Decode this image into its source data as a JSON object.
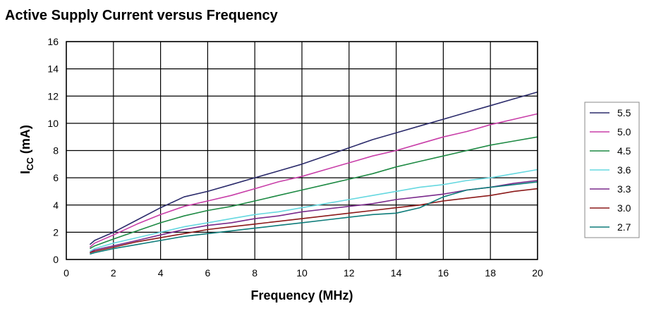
{
  "chart_data": {
    "type": "line",
    "title": "Active Supply Current versus Frequency",
    "xlabel": "Frequency (MHz)",
    "ylabel_main": "I",
    "ylabel_sub": "CC",
    "ylabel_unit": " (mA)",
    "xlim": [
      0,
      20
    ],
    "ylim": [
      0,
      16
    ],
    "x_ticks": [
      0,
      2,
      4,
      6,
      8,
      10,
      12,
      14,
      16,
      18,
      20
    ],
    "y_ticks": [
      0,
      2,
      4,
      6,
      8,
      10,
      12,
      14,
      16
    ],
    "grid": true,
    "legend_position": "right",
    "series": [
      {
        "name": "5.5",
        "color": "#2b2b6b",
        "x": [
          1,
          1.2,
          2,
          3,
          4,
          5,
          6,
          7,
          8,
          9,
          10,
          11,
          12,
          13,
          14,
          15,
          16,
          17,
          18,
          19,
          20
        ],
        "y": [
          1.1,
          1.4,
          2.0,
          2.9,
          3.8,
          4.6,
          5.0,
          5.5,
          6.0,
          6.5,
          7.0,
          7.6,
          8.2,
          8.8,
          9.3,
          9.8,
          10.3,
          10.8,
          11.3,
          11.8,
          12.3
        ]
      },
      {
        "name": "5.0",
        "color": "#c83ea8",
        "x": [
          1,
          1.2,
          2,
          3,
          4,
          5,
          6,
          7,
          8,
          9,
          10,
          11,
          12,
          13,
          14,
          15,
          16,
          17,
          18,
          19,
          20
        ],
        "y": [
          0.9,
          1.2,
          1.8,
          2.6,
          3.3,
          3.9,
          4.3,
          4.7,
          5.2,
          5.7,
          6.1,
          6.6,
          7.1,
          7.6,
          8.0,
          8.5,
          9.0,
          9.4,
          9.9,
          10.3,
          10.7
        ]
      },
      {
        "name": "4.5",
        "color": "#1e8a44",
        "x": [
          1,
          1.2,
          2,
          3,
          4,
          5,
          6,
          7,
          8,
          9,
          10,
          11,
          12,
          13,
          14,
          15,
          16,
          17,
          18,
          19,
          20
        ],
        "y": [
          0.8,
          1.0,
          1.5,
          2.1,
          2.7,
          3.2,
          3.6,
          3.9,
          4.3,
          4.7,
          5.1,
          5.5,
          5.9,
          6.3,
          6.8,
          7.2,
          7.6,
          8.0,
          8.4,
          8.7,
          9.0
        ]
      },
      {
        "name": "3.6",
        "color": "#66d8e0",
        "x": [
          1,
          1.2,
          2,
          3,
          4,
          5,
          6,
          7,
          8,
          9,
          10,
          11,
          12,
          13,
          14,
          15,
          16,
          17,
          18,
          19,
          20
        ],
        "y": [
          0.6,
          0.8,
          1.2,
          1.6,
          2.0,
          2.4,
          2.7,
          3.0,
          3.3,
          3.5,
          3.8,
          4.1,
          4.4,
          4.7,
          5.0,
          5.3,
          5.5,
          5.8,
          6.0,
          6.3,
          6.6
        ]
      },
      {
        "name": "3.3",
        "color": "#7a2a8c",
        "x": [
          1,
          1.2,
          2,
          3,
          4,
          5,
          6,
          7,
          8,
          9,
          10,
          11,
          12,
          13,
          14,
          15,
          16,
          17,
          18,
          19,
          20
        ],
        "y": [
          0.5,
          0.7,
          1.0,
          1.4,
          1.8,
          2.2,
          2.5,
          2.7,
          3.0,
          3.2,
          3.5,
          3.7,
          3.9,
          4.1,
          4.4,
          4.6,
          4.8,
          5.1,
          5.3,
          5.6,
          5.8
        ]
      },
      {
        "name": "3.0",
        "color": "#8c1a1a",
        "x": [
          1,
          1.2,
          2,
          3,
          4,
          5,
          6,
          7,
          8,
          9,
          10,
          11,
          12,
          13,
          14,
          15,
          16,
          17,
          18,
          19,
          20
        ],
        "y": [
          0.5,
          0.6,
          0.9,
          1.3,
          1.6,
          1.9,
          2.2,
          2.4,
          2.6,
          2.8,
          3.0,
          3.2,
          3.4,
          3.6,
          3.8,
          4.0,
          4.3,
          4.5,
          4.7,
          5.0,
          5.2
        ]
      },
      {
        "name": "2.7",
        "color": "#0e7c7a",
        "x": [
          1,
          1.2,
          2,
          3,
          4,
          5,
          6,
          7,
          8,
          9,
          10,
          11,
          12,
          13,
          14,
          15,
          16,
          17,
          18,
          19,
          20
        ],
        "y": [
          0.4,
          0.5,
          0.8,
          1.1,
          1.4,
          1.7,
          1.9,
          2.1,
          2.3,
          2.5,
          2.7,
          2.9,
          3.1,
          3.3,
          3.4,
          3.8,
          4.6,
          5.1,
          5.3,
          5.5,
          5.7
        ]
      }
    ]
  }
}
